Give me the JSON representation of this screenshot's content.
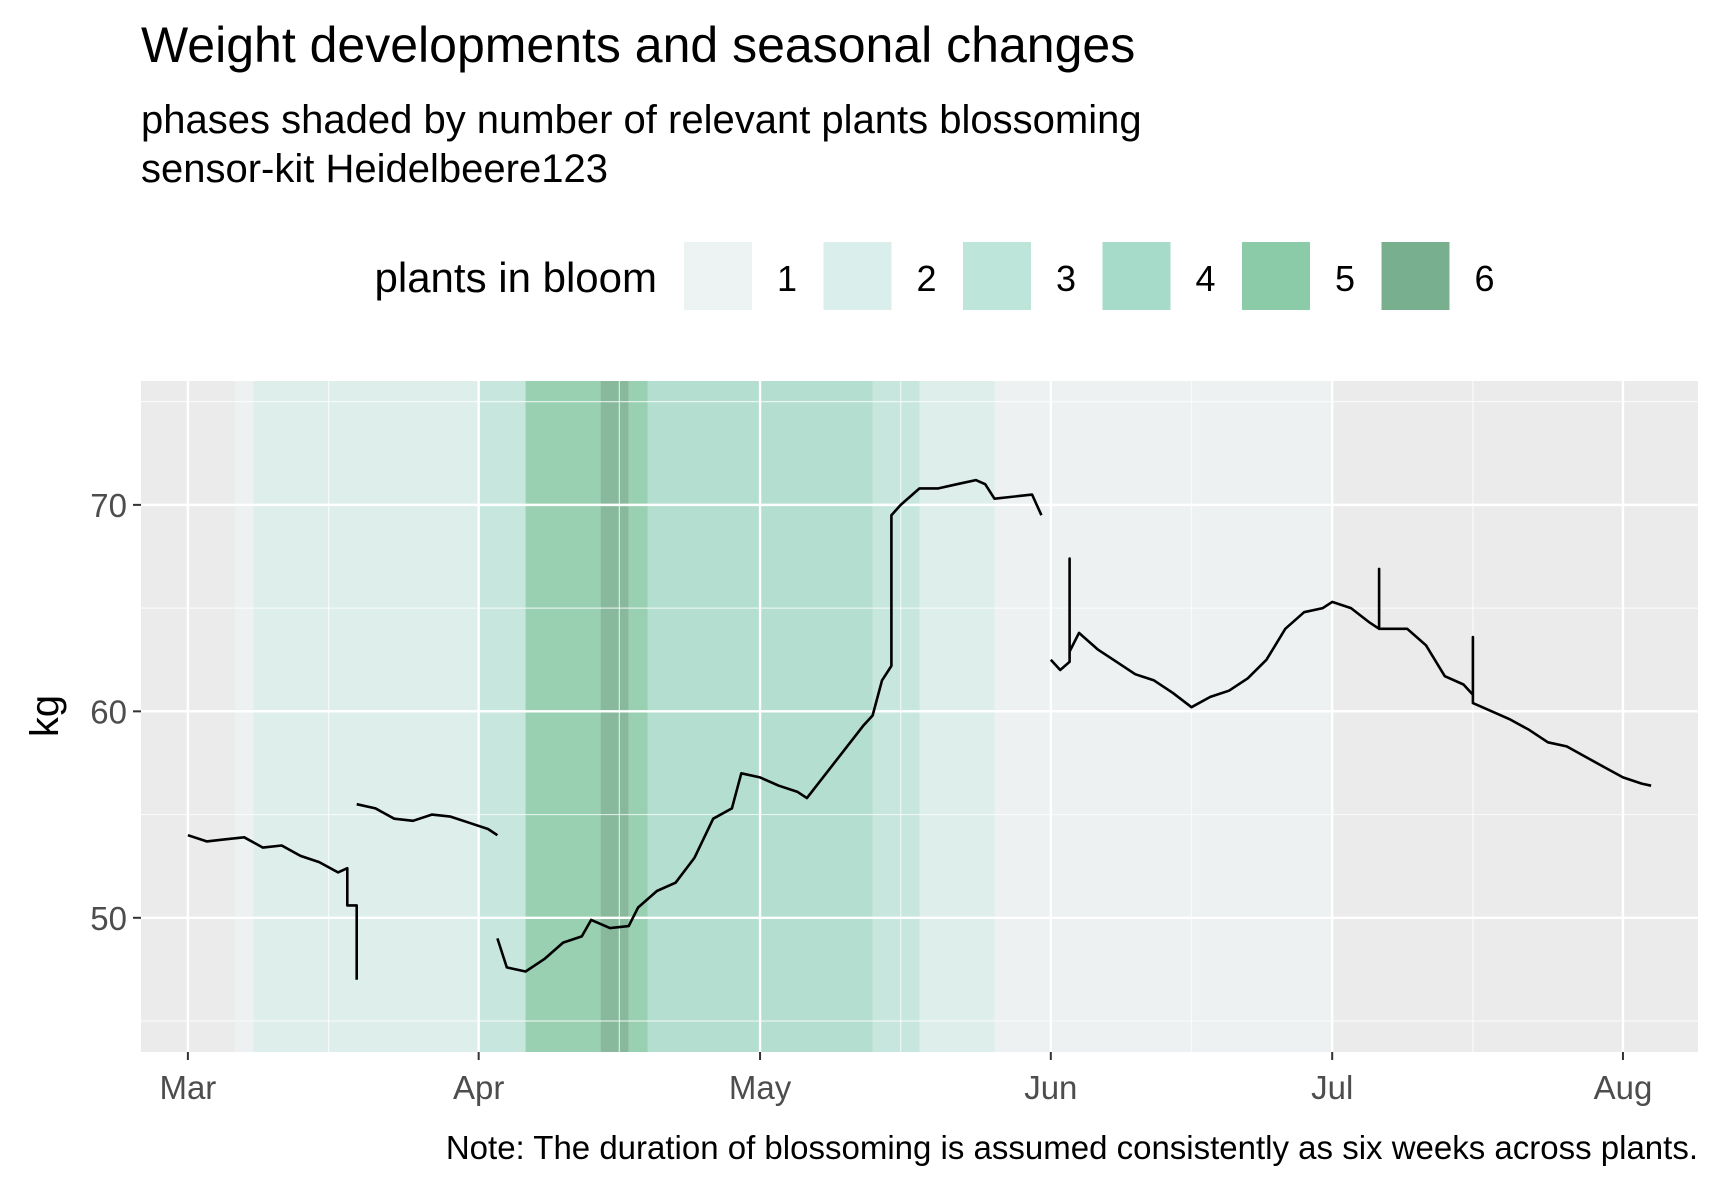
{
  "chart_data": {
    "type": "line",
    "title": "Weight developments and seasonal changes",
    "subtitle": [
      "phases shaded by number of relevant plants blossoming",
      "sensor-kit Heidelbeere123"
    ],
    "xlabel": "",
    "ylabel": "kg",
    "caption": "Note: The duration of blossoming is assumed consistently as six weeks across plants.",
    "x_type": "date",
    "xlim": [
      "2021-02-24",
      "2021-08-09"
    ],
    "ylim": [
      43.5,
      76
    ],
    "x_ticks": [
      {
        "date": "2021-03-01",
        "label": "Mar"
      },
      {
        "date": "2021-04-01",
        "label": "Apr"
      },
      {
        "date": "2021-05-01",
        "label": "May"
      },
      {
        "date": "2021-06-01",
        "label": "Jun"
      },
      {
        "date": "2021-07-01",
        "label": "Jul"
      },
      {
        "date": "2021-08-01",
        "label": "Aug"
      }
    ],
    "x_minor_ticks": [
      "2021-03-16",
      "2021-04-16",
      "2021-05-16",
      "2021-06-16",
      "2021-07-16"
    ],
    "y_ticks": [
      50,
      60,
      70
    ],
    "y_minor_ticks": [
      45,
      55,
      65,
      75
    ],
    "grid": true,
    "legend": {
      "title": "plants in bloom",
      "position": "top",
      "entries": [
        {
          "label": "1",
          "color": "#edf3f3"
        },
        {
          "label": "2",
          "color": "#daefeb"
        },
        {
          "label": "3",
          "color": "#bee5da"
        },
        {
          "label": "4",
          "color": "#a6dbc9"
        },
        {
          "label": "5",
          "color": "#8bcba8"
        },
        {
          "label": "6",
          "color": "#78b08f"
        }
      ]
    },
    "bloom_phases": [
      {
        "start": "2021-03-06",
        "end": "2021-03-08",
        "plants": 1
      },
      {
        "start": "2021-03-08",
        "end": "2021-04-01",
        "plants": 2
      },
      {
        "start": "2021-04-01",
        "end": "2021-04-06",
        "plants": 3
      },
      {
        "start": "2021-04-06",
        "end": "2021-04-14",
        "plants": 5
      },
      {
        "start": "2021-04-14",
        "end": "2021-04-17",
        "plants": 6
      },
      {
        "start": "2021-04-17",
        "end": "2021-04-19",
        "plants": 5
      },
      {
        "start": "2021-04-19",
        "end": "2021-05-13",
        "plants": 4
      },
      {
        "start": "2021-05-13",
        "end": "2021-05-18",
        "plants": 3
      },
      {
        "start": "2021-05-18",
        "end": "2021-05-26",
        "plants": 2
      },
      {
        "start": "2021-05-26",
        "end": "2021-07-01",
        "plants": 1
      }
    ],
    "series": [
      {
        "segments": [
          [
            [
              "2021-03-01",
              54.0
            ],
            [
              "2021-03-03",
              53.7
            ],
            [
              "2021-03-05",
              53.8
            ],
            [
              "2021-03-07",
              53.9
            ],
            [
              "2021-03-09",
              53.4
            ],
            [
              "2021-03-11",
              53.5
            ],
            [
              "2021-03-13",
              53.0
            ],
            [
              "2021-03-15",
              52.7
            ],
            [
              "2021-03-17",
              52.2
            ],
            [
              "2021-03-18",
              52.4
            ],
            [
              "2021-03-18",
              50.6
            ],
            [
              "2021-03-19",
              50.6
            ],
            [
              "2021-03-19",
              47.0
            ]
          ],
          [
            [
              "2021-03-19",
              55.5
            ],
            [
              "2021-03-21",
              55.3
            ],
            [
              "2021-03-23",
              54.8
            ],
            [
              "2021-03-25",
              54.7
            ],
            [
              "2021-03-27",
              55.0
            ],
            [
              "2021-03-29",
              54.9
            ],
            [
              "2021-03-31",
              54.6
            ],
            [
              "2021-04-02",
              54.3
            ],
            [
              "2021-04-03",
              54.0
            ]
          ],
          [
            [
              "2021-04-03",
              49.0
            ],
            [
              "2021-04-04",
              47.6
            ],
            [
              "2021-04-06",
              47.4
            ],
            [
              "2021-04-08",
              48.0
            ],
            [
              "2021-04-10",
              48.8
            ],
            [
              "2021-04-12",
              49.1
            ],
            [
              "2021-04-13",
              49.9
            ],
            [
              "2021-04-15",
              49.5
            ],
            [
              "2021-04-17",
              49.6
            ],
            [
              "2021-04-18",
              50.5
            ],
            [
              "2021-04-20",
              51.3
            ],
            [
              "2021-04-22",
              51.7
            ],
            [
              "2021-04-24",
              52.9
            ],
            [
              "2021-04-26",
              54.8
            ],
            [
              "2021-04-28",
              55.3
            ],
            [
              "2021-04-29",
              57.0
            ],
            [
              "2021-05-01",
              56.8
            ],
            [
              "2021-05-03",
              56.4
            ],
            [
              "2021-05-05",
              56.1
            ],
            [
              "2021-05-06",
              55.8
            ],
            [
              "2021-05-12",
              59.3
            ],
            [
              "2021-05-13",
              59.8
            ],
            [
              "2021-05-14",
              61.5
            ],
            [
              "2021-05-15",
              62.2
            ],
            [
              "2021-05-15",
              69.5
            ],
            [
              "2021-05-16",
              70.0
            ],
            [
              "2021-05-18",
              70.8
            ],
            [
              "2021-05-20",
              70.8
            ],
            [
              "2021-05-22",
              71.0
            ],
            [
              "2021-05-24",
              71.2
            ],
            [
              "2021-05-25",
              71.0
            ],
            [
              "2021-05-26",
              70.3
            ],
            [
              "2021-05-30",
              70.5
            ],
            [
              "2021-05-31",
              69.5
            ]
          ],
          [
            [
              "2021-06-01",
              62.5
            ],
            [
              "2021-06-02",
              62.0
            ],
            [
              "2021-06-03",
              62.4
            ],
            [
              "2021-06-03",
              67.4
            ],
            [
              "2021-06-03",
              62.9
            ],
            [
              "2021-06-04",
              63.8
            ],
            [
              "2021-06-06",
              63.0
            ],
            [
              "2021-06-08",
              62.4
            ],
            [
              "2021-06-10",
              61.8
            ],
            [
              "2021-06-12",
              61.5
            ],
            [
              "2021-06-14",
              60.9
            ],
            [
              "2021-06-16",
              60.2
            ],
            [
              "2021-06-18",
              60.7
            ],
            [
              "2021-06-20",
              61.0
            ],
            [
              "2021-06-22",
              61.6
            ],
            [
              "2021-06-24",
              62.5
            ],
            [
              "2021-06-26",
              64.0
            ],
            [
              "2021-06-28",
              64.8
            ],
            [
              "2021-06-30",
              65.0
            ],
            [
              "2021-07-01",
              65.3
            ],
            [
              "2021-07-03",
              65.0
            ],
            [
              "2021-07-05",
              64.3
            ],
            [
              "2021-07-06",
              64.0
            ],
            [
              "2021-07-06",
              66.9
            ],
            [
              "2021-07-06",
              64.0
            ],
            [
              "2021-07-09",
              64.0
            ],
            [
              "2021-07-11",
              63.2
            ],
            [
              "2021-07-13",
              61.7
            ],
            [
              "2021-07-15",
              61.3
            ],
            [
              "2021-07-16",
              60.8
            ],
            [
              "2021-07-16",
              63.6
            ],
            [
              "2021-07-16",
              60.4
            ],
            [
              "2021-07-18",
              60.0
            ],
            [
              "2021-07-20",
              59.6
            ],
            [
              "2021-07-22",
              59.1
            ],
            [
              "2021-07-24",
              58.5
            ],
            [
              "2021-07-26",
              58.3
            ],
            [
              "2021-07-28",
              57.8
            ],
            [
              "2021-07-30",
              57.3
            ],
            [
              "2021-08-01",
              56.8
            ],
            [
              "2021-08-03",
              56.5
            ],
            [
              "2021-08-04",
              56.4
            ]
          ]
        ]
      }
    ]
  }
}
